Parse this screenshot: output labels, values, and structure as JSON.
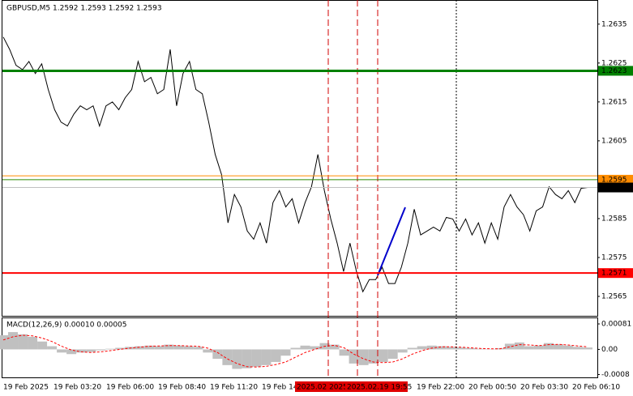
{
  "chart_data": [
    {
      "type": "line",
      "title": "GBPUSD,M5  1.2592 1.2593 1.2592 1.2593",
      "series": [
        {
          "color": "#000000",
          "values": [
            1.26317,
            1.26285,
            1.26244,
            1.26233,
            1.26254,
            1.26223,
            1.26248,
            1.26182,
            1.2613,
            1.26098,
            1.26088,
            1.26119,
            1.2614,
            1.2613,
            1.2614,
            1.26088,
            1.2614,
            1.2615,
            1.2613,
            1.26161,
            1.26182,
            1.26254,
            1.26202,
            1.26213,
            1.26171,
            1.26182,
            1.26285,
            1.2614,
            1.26223,
            1.26254,
            1.26182,
            1.26171,
            1.26098,
            1.26015,
            1.25963,
            1.25839,
            1.25912,
            1.2588,
            1.25818,
            1.25797,
            1.25839,
            1.25787,
            1.25891,
            1.25922,
            1.2588,
            1.25901,
            1.25839,
            1.25891,
            1.25932,
            1.26015,
            1.25922,
            1.25849,
            1.25787,
            1.25714,
            1.25787,
            1.25714,
            1.25662,
            1.25693,
            1.25693,
            1.25725,
            1.25683,
            1.25683,
            1.25725,
            1.25787,
            1.25874,
            1.25808,
            1.25818,
            1.25828,
            1.25818,
            1.25853,
            1.25849,
            1.25818,
            1.25849,
            1.25808,
            1.25839,
            1.25787,
            1.25839,
            1.25797,
            1.2588,
            1.25912,
            1.2588,
            1.2586,
            1.25818,
            1.2587,
            1.2588,
            1.25932,
            1.25912,
            1.25901,
            1.25922,
            1.25891,
            1.25928,
            1.2593
          ]
        }
      ],
      "ylim": [
        1.256,
        1.2641
      ],
      "yticks": [
        1.2635,
        1.2625,
        1.2615,
        1.2605,
        1.2595,
        1.2585,
        1.2575,
        1.2565
      ],
      "levels": [
        {
          "value": 1.2623,
          "color": "#008000",
          "label_color": "#008000",
          "width": 3
        },
        {
          "value": 1.2596,
          "color": "#ff8c00",
          "width": 1
        },
        {
          "value": 1.2595,
          "color": "#2e8b00",
          "label_color": "#ff8c00",
          "width": 1
        },
        {
          "value": 1.2593,
          "color": "#c0c0c0",
          "label_color": "#000000",
          "width": 1
        },
        {
          "value": 1.2571,
          "color": "#ff0000",
          "label_color": "#ff0000",
          "width": 2
        }
      ],
      "x_labels": [
        "19 Feb 2025",
        "19 Feb 03:20",
        "19 Feb 06:00",
        "19 Feb 08:40",
        "19 Feb 11:20",
        "19 Feb 14",
        "2025.02 2025",
        "2025.02.19 19:55",
        "19 Feb 22:00",
        "20 Feb 00:50",
        "20 Feb 03:30",
        "20 Feb 06:10"
      ]
    },
    {
      "type": "bar",
      "title": "MACD(12,26,9) 0.00010 0.00005",
      "series": [
        {
          "color": "#c0c0c0",
          "values": [
            0.00045,
            0.00055,
            0.00048,
            0.0004,
            0.00025,
            0.0001,
            -0.0001,
            -0.00015,
            -0.0001,
            -8e-05,
            -3e-05,
            2e-05,
            5e-05,
            8e-05,
            0.0001,
            0.00012,
            0.0001,
            0.00015,
            0.00012,
            0.0001,
            8e-05,
            -0.0001,
            -0.0003,
            -0.0005,
            -0.00062,
            -0.0006,
            -0.00055,
            -0.0005,
            -0.0004,
            -0.0002,
            5e-05,
            0.00012,
            0.0001,
            0.0002,
            0.00015,
            -0.0002,
            -0.00045,
            -0.0005,
            -0.00045,
            -0.0004,
            -0.0003,
            -0.0001,
            5e-05,
            0.0001,
            0.00012,
            0.0001,
            8e-05,
            6e-05,
            4e-05,
            2e-05,
            1e-05,
            4e-05,
            0.00018,
            0.00022,
            0.0001,
            0.00012,
            0.0002,
            0.00016,
            0.00012,
            8e-05,
            6e-05
          ]
        },
        {
          "color": "#ff0000",
          "values": [
            0.0003,
            0.0004,
            0.00045,
            0.00043,
            0.00036,
            0.00025,
            0.0001,
            -2e-05,
            -8e-05,
            -0.0001,
            -8e-05,
            -4e-05,
            0,
            4e-05,
            7e-05,
            0.0001,
            0.00011,
            0.00012,
            0.00012,
            0.00011,
            0.0001,
            4e-05,
            -0.0001,
            -0.0003,
            -0.00045,
            -0.00055,
            -0.00056,
            -0.00054,
            -0.00048,
            -0.0004,
            -0.00025,
            -0.0001,
            0,
            0.0001,
            0.00013,
            5e-05,
            -0.00015,
            -0.0003,
            -0.0004,
            -0.00042,
            -0.0004,
            -0.0003,
            -0.00015,
            -4e-05,
            4e-05,
            8e-05,
            8e-05,
            7e-05,
            5e-05,
            3e-05,
            2e-05,
            2e-05,
            8e-05,
            0.00015,
            0.00014,
            0.00012,
            0.00015,
            0.00016,
            0.00014,
            0.00011,
            8e-05
          ]
        }
      ],
      "ylim": [
        -0.00089,
        0.00099
      ],
      "yticks": [
        0.00081,
        {
          "value": 0,
          "label": "0.00"
        },
        -0.0008
      ]
    }
  ]
}
